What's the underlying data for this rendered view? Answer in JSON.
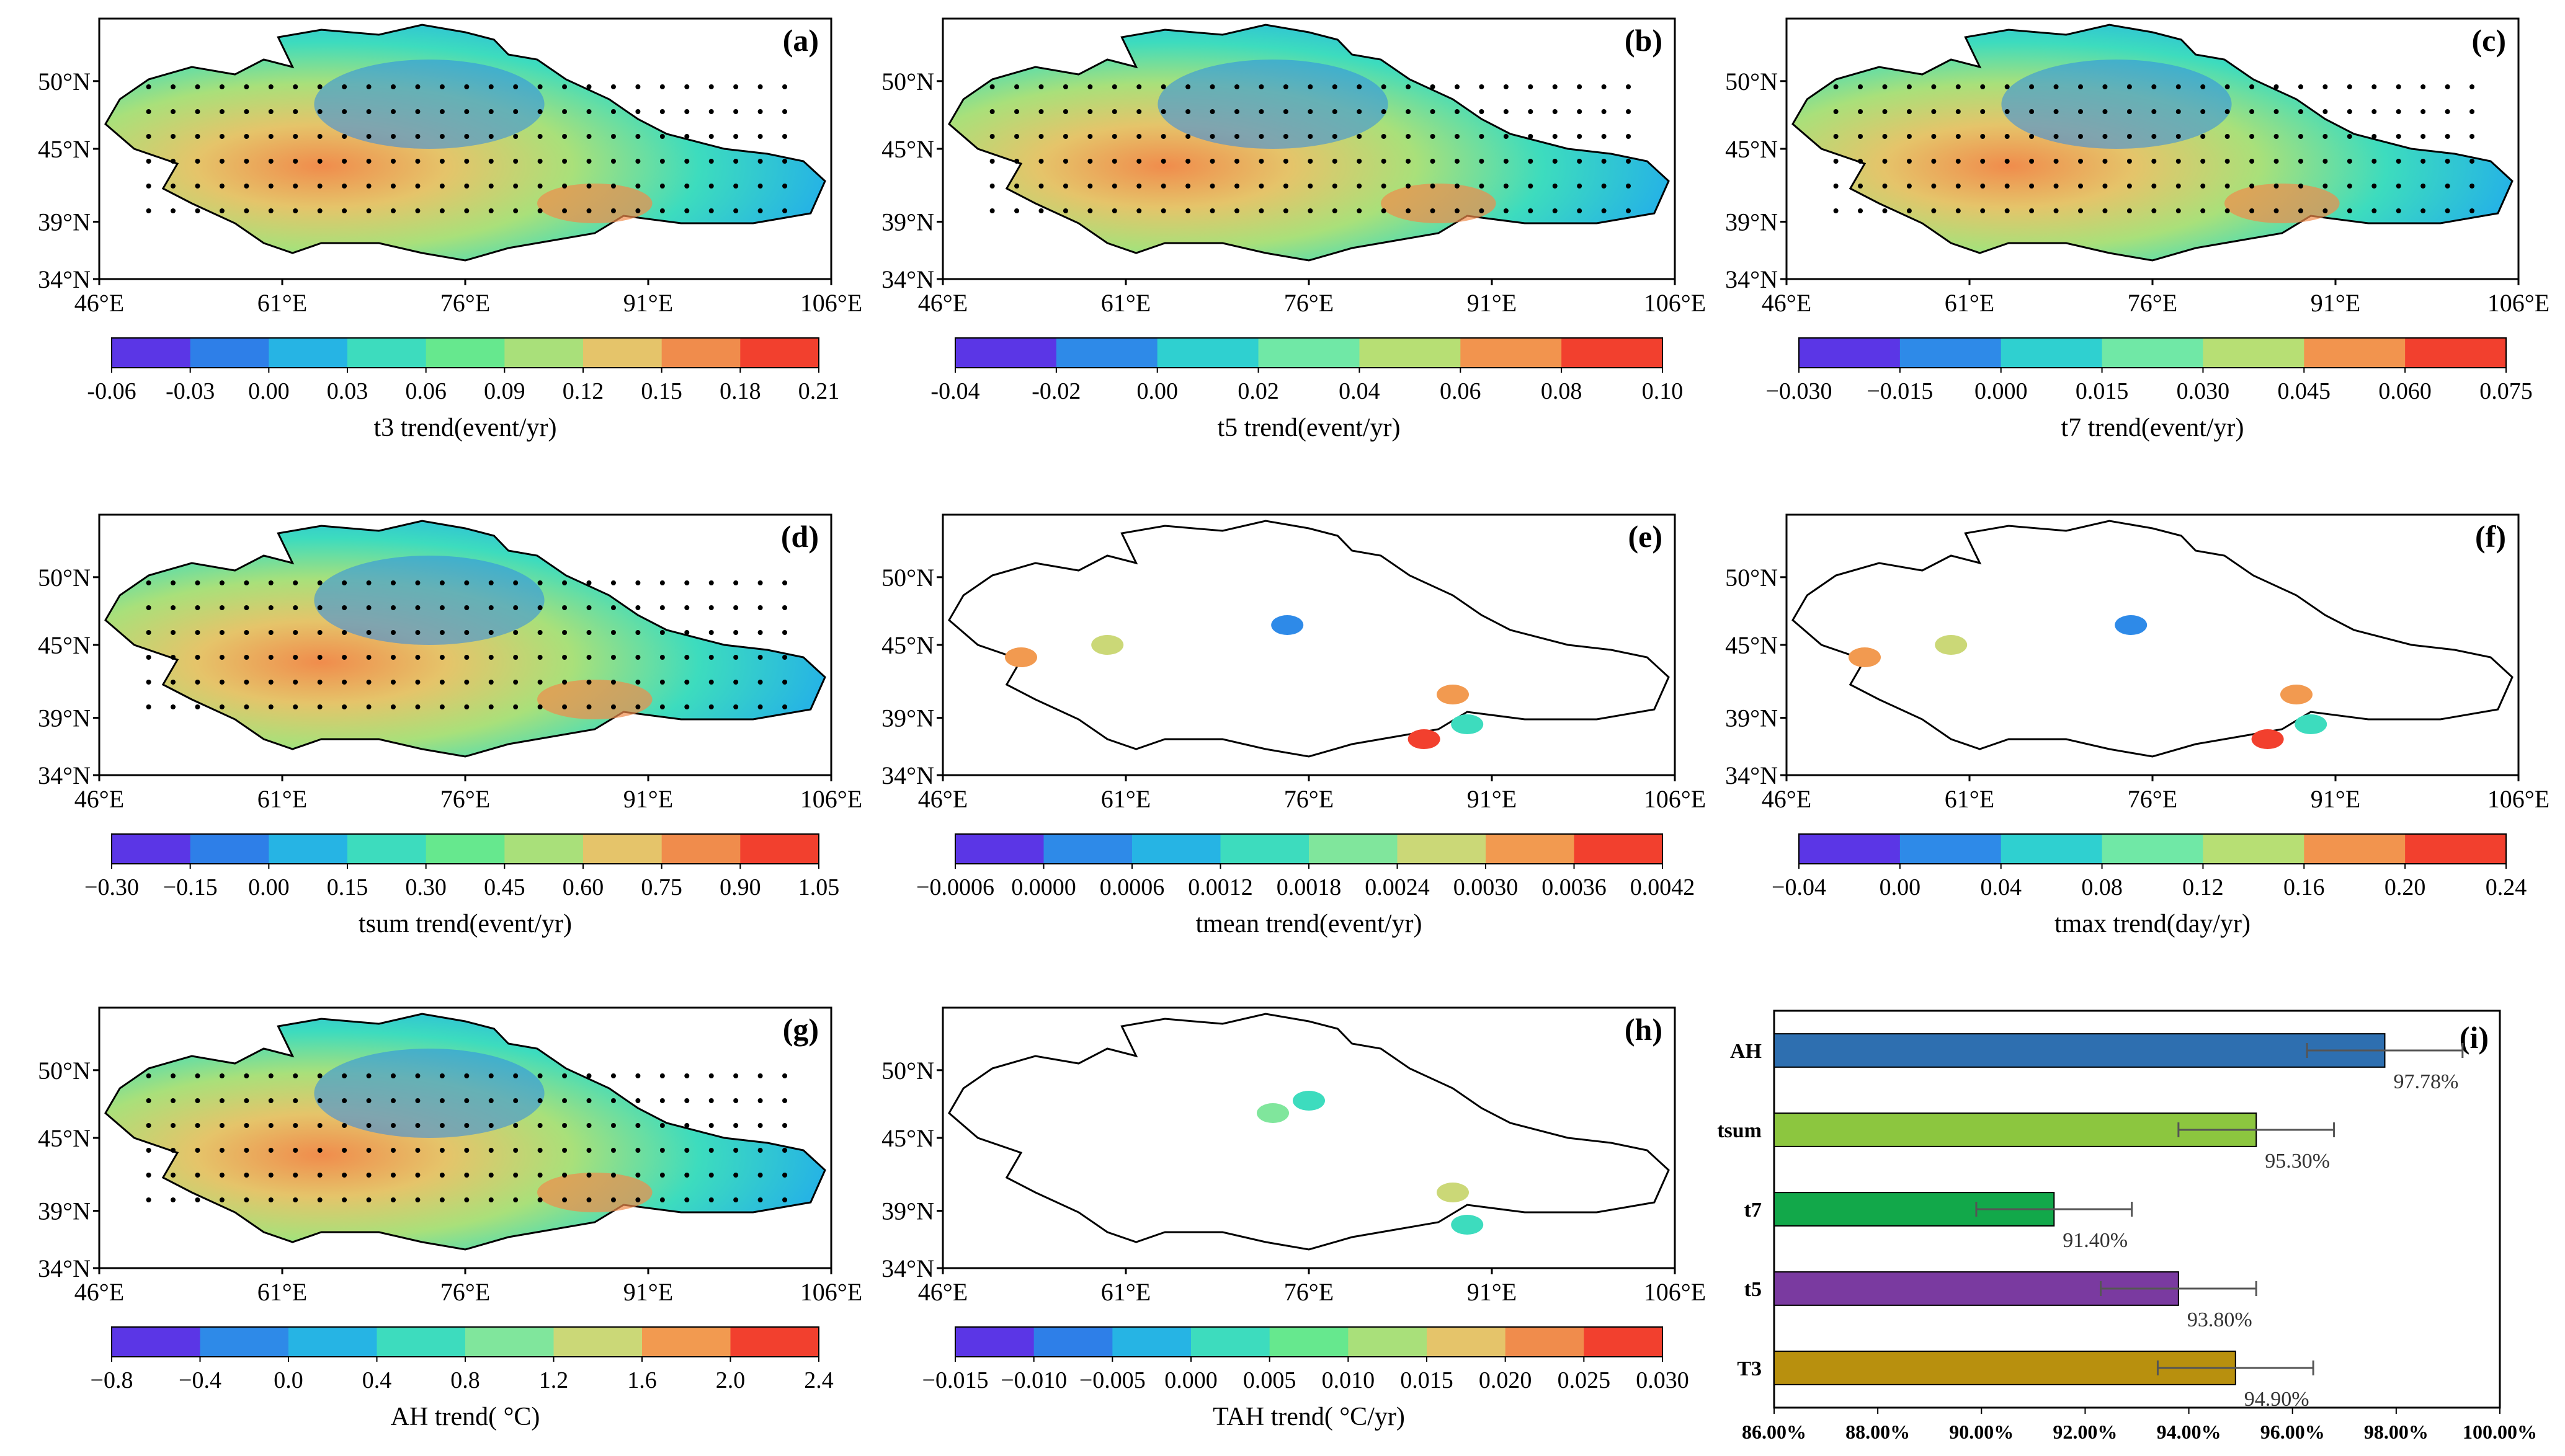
{
  "panels": [
    {
      "label": "(a)",
      "field": "full",
      "stippled": true,
      "colorbar_label": "t3 trend(event/yr)",
      "colorbar": {
        "ticks": [
          "-0.06",
          "-0.03",
          "0.00",
          "0.03",
          "0.06",
          "0.09",
          "0.12",
          "0.15",
          "0.18",
          "0.21"
        ],
        "colors": [
          "#5b36e6",
          "#2e7fe8",
          "#26b4e4",
          "#3ddcbe",
          "#66e88e",
          "#a9e07a",
          "#e5c46a",
          "#f08c4c",
          "#f2402e"
        ]
      }
    },
    {
      "label": "(b)",
      "field": "full",
      "stippled": true,
      "colorbar_label": "t5 trend(event/yr)",
      "colorbar": {
        "ticks": [
          "-0.04",
          "-0.02",
          "0.00",
          "0.02",
          "0.04",
          "0.06",
          "0.08",
          "0.10"
        ],
        "colors": [
          "#5b36e6",
          "#2e8ae8",
          "#2fd0d0",
          "#70e8a6",
          "#b7df74",
          "#f2944e",
          "#f2402e"
        ]
      }
    },
    {
      "label": "(c)",
      "field": "full",
      "stippled": true,
      "colorbar_label": "t7 trend(event/yr)",
      "colorbar": {
        "ticks": [
          "−0.030",
          "−0.015",
          "0.000",
          "0.015",
          "0.030",
          "0.045",
          "0.060",
          "0.075"
        ],
        "colors": [
          "#5b36e6",
          "#2e8ae8",
          "#2fd0d0",
          "#70e8a6",
          "#b7df74",
          "#f2944e",
          "#f2402e"
        ]
      }
    },
    {
      "label": "(d)",
      "field": "full",
      "stippled": true,
      "colorbar_label": "tsum trend(event/yr)",
      "colorbar": {
        "ticks": [
          "−0.30",
          "−0.15",
          "0.00",
          "0.15",
          "0.30",
          "0.45",
          "0.60",
          "0.75",
          "0.90",
          "1.05"
        ],
        "colors": [
          "#5b36e6",
          "#2e7fe8",
          "#26b4e4",
          "#3ddcbe",
          "#66e88e",
          "#a9e07a",
          "#e5c46a",
          "#f08c4c",
          "#f2402e"
        ]
      }
    },
    {
      "label": "(e)",
      "field": "sparse",
      "stippled": false,
      "colorbar_label": "tmean trend(event/yr)",
      "colorbar": {
        "ticks": [
          "−0.0006",
          "0.0000",
          "0.0006",
          "0.0012",
          "0.0018",
          "0.0024",
          "0.0030",
          "0.0036",
          "0.0042"
        ],
        "colors": [
          "#5b36e6",
          "#2e8ae8",
          "#26b4e4",
          "#3ddcbe",
          "#80e69c",
          "#cbd877",
          "#f29a50",
          "#f2402e"
        ]
      }
    },
    {
      "label": "(f)",
      "field": "sparse",
      "stippled": false,
      "colorbar_label": "tmax trend(day/yr)",
      "colorbar": {
        "ticks": [
          "−0.04",
          "0.00",
          "0.04",
          "0.08",
          "0.12",
          "0.16",
          "0.20",
          "0.24"
        ],
        "colors": [
          "#5b36e6",
          "#2e8ae8",
          "#2fd0d0",
          "#70e8a6",
          "#b7df74",
          "#f2944e",
          "#f2402e"
        ]
      }
    },
    {
      "label": "(g)",
      "field": "full",
      "stippled": true,
      "colorbar_label": "AH trend( °C)",
      "colorbar": {
        "ticks": [
          "−0.8",
          "−0.4",
          "0.0",
          "0.4",
          "0.8",
          "1.2",
          "1.6",
          "2.0",
          "2.4"
        ],
        "colors": [
          "#5b36e6",
          "#2e8ae8",
          "#26b4e4",
          "#3ddcbe",
          "#80e69c",
          "#cbd877",
          "#f29a50",
          "#f2402e"
        ]
      }
    },
    {
      "label": "(h)",
      "field": "sparse_small",
      "stippled": false,
      "colorbar_label": "TAH trend( °C/yr)",
      "colorbar": {
        "ticks": [
          "−0.015",
          "−0.010",
          "−0.005",
          "0.000",
          "0.005",
          "0.010",
          "0.015",
          "0.020",
          "0.025",
          "0.030"
        ],
        "colors": [
          "#5b36e6",
          "#2e7fe8",
          "#26b4e4",
          "#3ddcbe",
          "#66e88e",
          "#a9e07a",
          "#e5c46a",
          "#f08c4c",
          "#f2402e"
        ]
      }
    }
  ],
  "map_axes": {
    "lat_ticks": [
      "50°N",
      "45°N",
      "39°N",
      "34°N"
    ],
    "lon_ticks": [
      "46°E",
      "61°E",
      "76°E",
      "91°E",
      "106°E"
    ]
  },
  "chart_data": {
    "type": "bar",
    "label": "(i)",
    "orientation": "horizontal",
    "categories": [
      "AH",
      "tsum",
      "t7",
      "t5",
      "T3"
    ],
    "values": [
      97.78,
      95.3,
      91.4,
      93.8,
      94.9
    ],
    "value_labels": [
      "97.78%",
      "95.30%",
      "91.40%",
      "93.80%",
      "94.90%"
    ],
    "error": [
      1.5,
      1.5,
      1.5,
      1.5,
      1.5
    ],
    "colors": [
      "#2e6fb0",
      "#8cc63f",
      "#12a84a",
      "#7a3aa0",
      "#b8900e"
    ],
    "xlim": [
      86,
      100
    ],
    "xticks": [
      "86.00%",
      "88.00%",
      "90.00%",
      "92.00%",
      "94.00%",
      "96.00%",
      "98.00%",
      "100.00%"
    ]
  }
}
